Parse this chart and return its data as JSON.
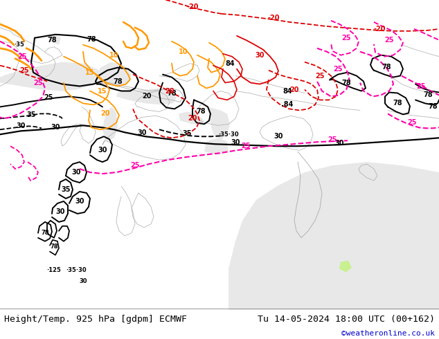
{
  "title_left": "Height/Temp. 925 hPa [gdpm] ECMWF",
  "title_right": "Tu 14-05-2024 18:00 UTC (00+162)",
  "credit": "©weatheronline.co.uk",
  "bg_color": "#ffffff",
  "land_color": "#c8f090",
  "sea_color": "#e8e8e8",
  "border_line_color": "#aaaaaa",
  "label_color_left": "#000000",
  "label_color_right": "#000000",
  "credit_color": "#0000cc",
  "fig_width": 6.34,
  "fig_height": 4.9,
  "dpi": 100,
  "font_size_bottom": 9.5,
  "font_size_credit": 8
}
